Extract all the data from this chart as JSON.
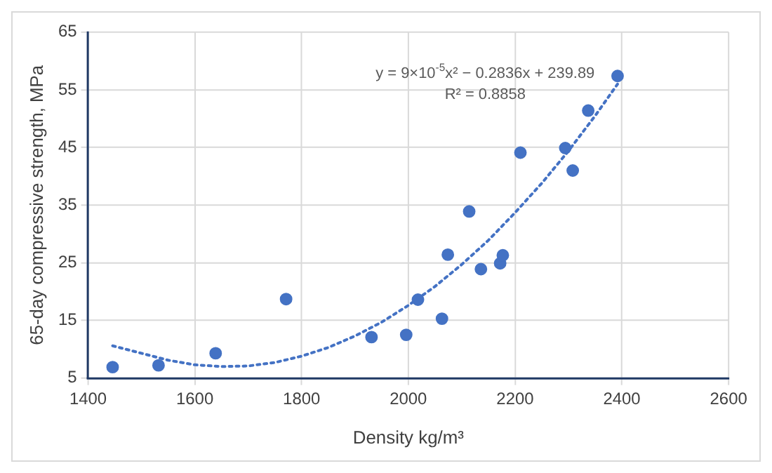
{
  "chart_data": {
    "type": "scatter",
    "xlabel": "Density kg/m³",
    "ylabel": "65-day compressive strength, MPa",
    "xlim": [
      1400,
      2600
    ],
    "xticks": [
      1400,
      1600,
      1800,
      2000,
      2200,
      2400,
      2600
    ],
    "ylim": [
      5,
      65
    ],
    "yticks": [
      5,
      15,
      25,
      35,
      45,
      55,
      65
    ],
    "grid": true,
    "legend": false,
    "annotations": [
      "y = 9×10$^{-5}$x² − 0.2836x + 239.89",
      "R² = 0.8858"
    ],
    "series": [
      {
        "type": "scatter",
        "color": "#4472c4",
        "marker": "circle",
        "x": [
          1446,
          1532,
          1639,
          1771,
          1931,
          1996,
          2018,
          2063,
          2074,
          2114,
          2136,
          2172,
          2177,
          2210,
          2294,
          2308,
          2337,
          2392
        ],
        "values": [
          6.9,
          7.2,
          9.3,
          18.7,
          12.1,
          12.5,
          18.6,
          15.3,
          26.4,
          33.9,
          23.9,
          24.9,
          26.3,
          44.1,
          44.9,
          41.0,
          51.4,
          57.4
        ]
      },
      {
        "type": "line",
        "color": "#4472c4",
        "marker": "none",
        "line_style": "dotted",
        "x": [
          1446,
          1500,
          1550,
          1600,
          1650,
          1700,
          1750,
          1800,
          1850,
          1900,
          1950,
          2000,
          2050,
          2100,
          2150,
          2200,
          2250,
          2300,
          2350,
          2392
        ],
        "values": [
          10.6,
          9.3,
          8.1,
          7.3,
          7.0,
          7.1,
          7.7,
          8.8,
          10.3,
          12.3,
          14.7,
          17.6,
          20.9,
          24.7,
          28.9,
          33.7,
          38.8,
          44.4,
          50.5,
          56.0
        ]
      }
    ]
  }
}
